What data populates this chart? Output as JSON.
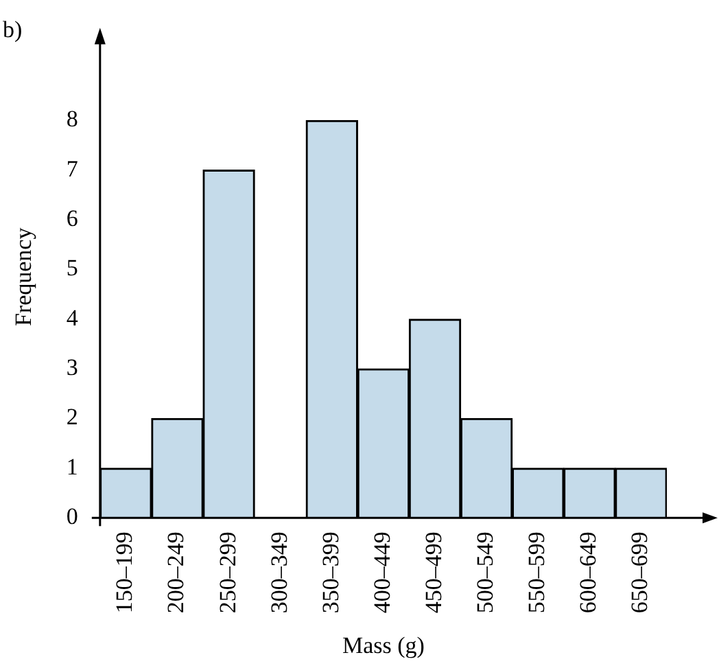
{
  "chart_data": {
    "type": "bar",
    "xlabel": "Mass (g)",
    "ylabel": "Frequency",
    "annotations": [
      "b)"
    ],
    "categories": [
      "150–199",
      "200–249",
      "250–299",
      "300–349",
      "350–399",
      "400–449",
      "450–499",
      "500–549",
      "550–599",
      "600–649",
      "650–699"
    ],
    "values": [
      1,
      2,
      7,
      0,
      8,
      3,
      4,
      2,
      1,
      1,
      1
    ],
    "color": "#c5dbea",
    "ylim": [
      0,
      9.7
    ],
    "yticks": [
      0,
      1,
      2,
      3,
      4,
      5,
      6,
      7,
      8
    ],
    "grid": false,
    "legend": false
  }
}
